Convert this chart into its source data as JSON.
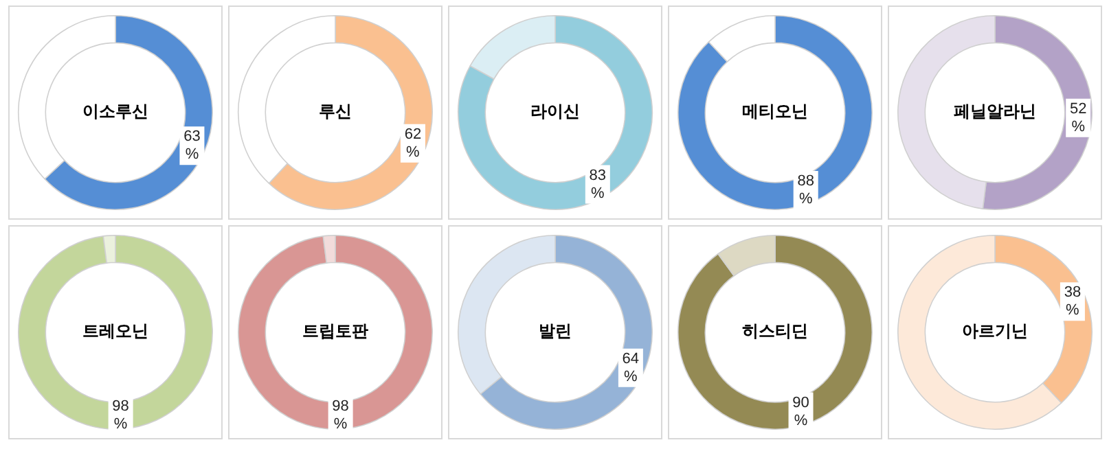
{
  "chart_data": [
    {
      "type": "donut",
      "title": "이소루신",
      "categories": [
        null,
        null
      ],
      "values": [
        63,
        37
      ],
      "colors": [
        "#558ed5",
        "#ffffff"
      ],
      "value_labels": [
        "63 %",
        null
      ]
    },
    {
      "type": "donut",
      "title": "루신",
      "categories": [
        null,
        null
      ],
      "values": [
        62,
        38
      ],
      "colors": [
        "#fac090",
        "#ffffff"
      ],
      "value_labels": [
        "62 %",
        null
      ]
    },
    {
      "type": "donut",
      "title": "라이신",
      "categories": [
        null,
        null
      ],
      "values": [
        83,
        17
      ],
      "colors": [
        "#93cddd",
        "#dbeef4"
      ],
      "value_labels": [
        "83 %",
        null
      ]
    },
    {
      "type": "donut",
      "title": "메티오닌",
      "categories": [
        null,
        null
      ],
      "values": [
        88,
        12
      ],
      "colors": [
        "#558ed5",
        "#ffffff"
      ],
      "value_labels": [
        "88 %",
        null
      ]
    },
    {
      "type": "donut",
      "title": "페닐알라닌",
      "categories": [
        null,
        null
      ],
      "values": [
        52,
        48
      ],
      "colors": [
        "#b3a2c7",
        "#e6e0ec"
      ],
      "value_labels": [
        "52 %",
        null
      ]
    },
    {
      "type": "donut",
      "title": "트레오닌",
      "categories": [
        null,
        null
      ],
      "values": [
        98,
        2
      ],
      "colors": [
        "#c3d69b",
        "#ebf1de"
      ],
      "value_labels": [
        "98 %",
        null
      ]
    },
    {
      "type": "donut",
      "title": "트립토판",
      "categories": [
        null,
        null
      ],
      "values": [
        98,
        2
      ],
      "colors": [
        "#d99694",
        "#f2dcdb"
      ],
      "value_labels": [
        "98 %",
        null
      ]
    },
    {
      "type": "donut",
      "title": "발린",
      "categories": [
        null,
        null
      ],
      "values": [
        64,
        36
      ],
      "colors": [
        "#95b3d7",
        "#dce6f2"
      ],
      "value_labels": [
        "64 %",
        null
      ]
    },
    {
      "type": "donut",
      "title": "히스티딘",
      "categories": [
        null,
        null
      ],
      "values": [
        90,
        10
      ],
      "colors": [
        "#948a54",
        "#ddd9c3"
      ],
      "value_labels": [
        "90 %",
        null
      ]
    },
    {
      "type": "donut",
      "title": "아르기닌",
      "categories": [
        null,
        null
      ],
      "values": [
        38,
        62
      ],
      "colors": [
        "#fac090",
        "#fde9d9"
      ],
      "value_labels": [
        "38 %",
        null
      ]
    }
  ]
}
